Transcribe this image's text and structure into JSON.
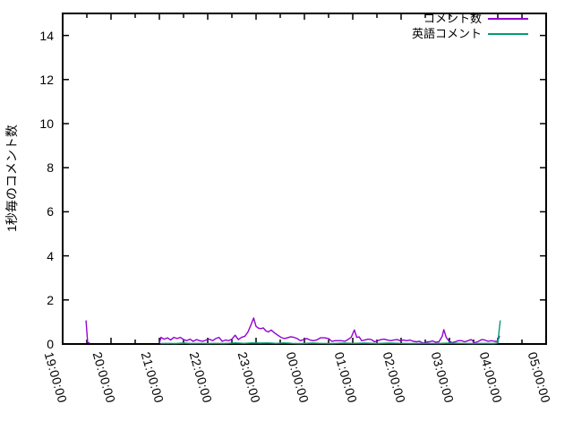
{
  "chart_data": {
    "type": "line",
    "title": "",
    "xlabel": "",
    "ylabel": "1秒毎のコメント数",
    "x_tick_labels": [
      "19:00:00",
      "20:00:00",
      "21:00:00",
      "22:00:00",
      "23:00:00",
      "00:00:00",
      "01:00:00",
      "02:00:00",
      "03:00:00",
      "04:00:00",
      "05:00:00"
    ],
    "x_minor_tick_minutes": 30,
    "y_ticks": [
      0,
      2,
      4,
      6,
      8,
      10,
      12,
      14
    ],
    "ylim": [
      0,
      15
    ],
    "x_range": [
      "19:00:00",
      "05:00:00"
    ],
    "grid": false,
    "legend_position": "top-right-inside",
    "frame_color": "#000000",
    "series": [
      {
        "id": "comment-count",
        "name": "コメント数",
        "color": "#9400d3",
        "segments": [
          [
            [
              "19:29",
              1.05
            ],
            [
              "19:31",
              0.08
            ],
            [
              "19:33",
              0.05
            ]
          ],
          [
            [
              "21:00",
              0.05
            ],
            [
              "21:02",
              0.3
            ],
            [
              "21:06",
              0.22
            ],
            [
              "21:10",
              0.28
            ],
            [
              "21:14",
              0.18
            ],
            [
              "21:18",
              0.3
            ],
            [
              "21:22",
              0.25
            ],
            [
              "21:26",
              0.3
            ],
            [
              "21:30",
              0.2
            ],
            [
              "21:34",
              0.15
            ],
            [
              "21:38",
              0.22
            ],
            [
              "21:42",
              0.12
            ],
            [
              "21:46",
              0.2
            ],
            [
              "21:50",
              0.15
            ],
            [
              "21:54",
              0.12
            ],
            [
              "21:58",
              0.18
            ],
            [
              "22:02",
              0.22
            ],
            [
              "22:06",
              0.15
            ],
            [
              "22:10",
              0.25
            ],
            [
              "22:14",
              0.3
            ],
            [
              "22:18",
              0.12
            ],
            [
              "22:22",
              0.18
            ],
            [
              "22:26",
              0.15
            ],
            [
              "22:30",
              0.22
            ],
            [
              "22:34",
              0.4
            ],
            [
              "22:38",
              0.2
            ],
            [
              "22:42",
              0.3
            ],
            [
              "22:46",
              0.35
            ],
            [
              "22:50",
              0.55
            ],
            [
              "22:54",
              0.9
            ],
            [
              "22:57",
              1.18
            ],
            [
              "23:00",
              0.8
            ],
            [
              "23:03",
              0.72
            ],
            [
              "23:06",
              0.7
            ],
            [
              "23:09",
              0.73
            ],
            [
              "23:12",
              0.6
            ],
            [
              "23:15",
              0.55
            ],
            [
              "23:19",
              0.63
            ],
            [
              "23:23",
              0.5
            ],
            [
              "23:27",
              0.4
            ],
            [
              "23:31",
              0.3
            ],
            [
              "23:35",
              0.25
            ],
            [
              "23:39",
              0.28
            ],
            [
              "23:43",
              0.33
            ],
            [
              "23:47",
              0.3
            ],
            [
              "23:51",
              0.25
            ],
            [
              "23:55",
              0.15
            ],
            [
              "23:59",
              0.2
            ],
            [
              "00:03",
              0.25
            ],
            [
              "00:07",
              0.18
            ],
            [
              "00:11",
              0.15
            ],
            [
              "00:15",
              0.18
            ],
            [
              "00:20",
              0.28
            ],
            [
              "00:25",
              0.28
            ],
            [
              "00:30",
              0.25
            ],
            [
              "00:34",
              0.12
            ],
            [
              "00:38",
              0.15
            ],
            [
              "00:42",
              0.15
            ],
            [
              "00:46",
              0.15
            ],
            [
              "00:50",
              0.12
            ],
            [
              "00:54",
              0.2
            ],
            [
              "00:58",
              0.3
            ],
            [
              "01:02",
              0.64
            ],
            [
              "01:05",
              0.3
            ],
            [
              "01:08",
              0.32
            ],
            [
              "01:11",
              0.15
            ],
            [
              "01:15",
              0.18
            ],
            [
              "01:19",
              0.22
            ],
            [
              "01:23",
              0.2
            ],
            [
              "01:27",
              0.1
            ],
            [
              "01:31",
              0.15
            ],
            [
              "01:35",
              0.2
            ],
            [
              "01:39",
              0.22
            ],
            [
              "01:43",
              0.18
            ],
            [
              "01:47",
              0.15
            ],
            [
              "01:51",
              0.18
            ],
            [
              "01:55",
              0.2
            ],
            [
              "01:59",
              0.15
            ],
            [
              "02:03",
              0.18
            ],
            [
              "02:07",
              0.15
            ],
            [
              "02:11",
              0.18
            ],
            [
              "02:15",
              0.12
            ],
            [
              "02:19",
              0.1
            ],
            [
              "02:23",
              0.12
            ],
            [
              "02:27",
              0.04
            ],
            [
              "02:31",
              0.08
            ],
            [
              "02:35",
              0.1
            ],
            [
              "02:39",
              0.14
            ],
            [
              "02:43",
              0.08
            ],
            [
              "02:47",
              0.1
            ],
            [
              "02:51",
              0.35
            ],
            [
              "02:53",
              0.65
            ],
            [
              "02:56",
              0.3
            ],
            [
              "02:59",
              0.15
            ],
            [
              "03:03",
              0.06
            ],
            [
              "03:07",
              0.1
            ],
            [
              "03:11",
              0.15
            ],
            [
              "03:15",
              0.15
            ],
            [
              "03:19",
              0.1
            ],
            [
              "03:23",
              0.15
            ],
            [
              "03:27",
              0.2
            ],
            [
              "03:31",
              0.06
            ],
            [
              "03:35",
              0.1
            ],
            [
              "03:40",
              0.2
            ],
            [
              "03:44",
              0.18
            ],
            [
              "03:48",
              0.12
            ],
            [
              "03:52",
              0.15
            ],
            [
              "03:56",
              0.12
            ],
            [
              "04:00",
              0.12
            ],
            [
              "04:02",
              0.35
            ]
          ]
        ]
      },
      {
        "id": "english-comments",
        "name": "英語コメント",
        "color": "#009e73",
        "segments": [
          [
            [
              "21:02",
              0.02
            ],
            [
              "21:10",
              0.03
            ],
            [
              "21:20",
              0.02
            ],
            [
              "21:30",
              0.04
            ],
            [
              "21:40",
              0.02
            ],
            [
              "21:50",
              0.03
            ],
            [
              "22:00",
              0.02
            ],
            [
              "22:10",
              0.03
            ],
            [
              "22:20",
              0.02
            ],
            [
              "22:35",
              0.05
            ],
            [
              "22:45",
              0.03
            ],
            [
              "22:55",
              0.05
            ],
            [
              "23:05",
              0.04
            ],
            [
              "23:15",
              0.05
            ],
            [
              "23:25",
              0.03
            ],
            [
              "23:35",
              0.05
            ],
            [
              "23:45",
              0.03
            ],
            [
              "23:55",
              0.02
            ],
            [
              "00:10",
              0.04
            ],
            [
              "00:20",
              0.03
            ],
            [
              "00:35",
              0.02
            ],
            [
              "00:50",
              0.04
            ],
            [
              "01:00",
              0.03
            ],
            [
              "01:15",
              0.04
            ],
            [
              "01:30",
              0.02
            ],
            [
              "01:45",
              0.04
            ],
            [
              "02:00",
              0.03
            ],
            [
              "02:15",
              0.02
            ],
            [
              "02:30",
              0.03
            ],
            [
              "02:45",
              0.02
            ],
            [
              "03:00",
              0.04
            ],
            [
              "03:15",
              0.03
            ],
            [
              "03:30",
              0.02
            ],
            [
              "03:45",
              0.03
            ],
            [
              "03:55",
              0.02
            ],
            [
              "04:00",
              0.05
            ],
            [
              "04:03",
              1.05
            ]
          ]
        ]
      }
    ]
  }
}
